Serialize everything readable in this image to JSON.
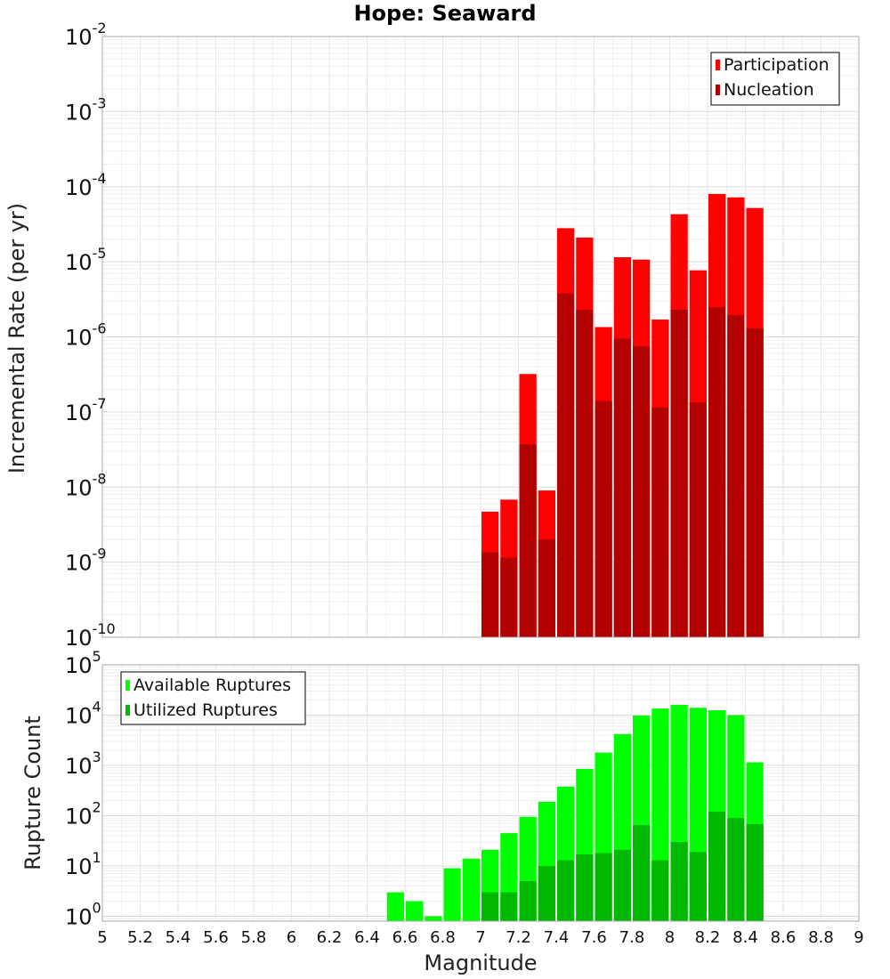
{
  "chart_data": [
    {
      "type": "bar",
      "title": "Hope: Seaward",
      "ylabel": "Incremental Rate (per yr)",
      "xlabel": "",
      "y_scale": "log",
      "ylim": [
        1e-10,
        0.01
      ],
      "xlim": [
        5,
        9
      ],
      "bar_width": 0.1,
      "legend": {
        "position": "top-right",
        "entries": [
          "Participation",
          "Nucleation"
        ]
      },
      "y_ticks": [
        {
          "base": "10",
          "exp": "-10",
          "value": 1e-10
        },
        {
          "base": "10",
          "exp": "-9",
          "value": 1e-09
        },
        {
          "base": "10",
          "exp": "-8",
          "value": 1e-08
        },
        {
          "base": "10",
          "exp": "-7",
          "value": 1e-07
        },
        {
          "base": "10",
          "exp": "-6",
          "value": 1e-06
        },
        {
          "base": "10",
          "exp": "-5",
          "value": 1e-05
        },
        {
          "base": "10",
          "exp": "-4",
          "value": 0.0001
        },
        {
          "base": "10",
          "exp": "-3",
          "value": 0.001
        },
        {
          "base": "10",
          "exp": "-2",
          "value": 0.01
        }
      ],
      "x": [
        7.05,
        7.15,
        7.25,
        7.35,
        7.45,
        7.55,
        7.65,
        7.75,
        7.85,
        7.95,
        8.05,
        8.15,
        8.25,
        8.35,
        8.45
      ],
      "series": [
        {
          "name": "Participation",
          "color": "#ff0000",
          "values": [
            4.7e-09,
            6.8e-09,
            3.2e-07,
            9e-09,
            2.8e-05,
            2.1e-05,
            1.35e-06,
            1.15e-05,
            1.07e-05,
            1.7e-06,
            4.3e-05,
            7.7e-06,
            8e-05,
            7.2e-05,
            5.2e-05
          ]
        },
        {
          "name": "Nucleation",
          "color": "#b20000",
          "values": [
            1.35e-09,
            1.15e-09,
            3.7e-08,
            2e-09,
            3.8e-06,
            2.3e-06,
            1.4e-07,
            9.5e-07,
            7.5e-07,
            1.15e-07,
            2.3e-06,
            1.35e-07,
            2.5e-06,
            1.95e-06,
            1.3e-06
          ]
        }
      ]
    },
    {
      "type": "bar",
      "title": "",
      "ylabel": "Rupture Count",
      "xlabel": "Magnitude",
      "y_scale": "log",
      "ylim": [
        0.8,
        100000.0
      ],
      "xlim": [
        5,
        9
      ],
      "bar_width": 0.1,
      "legend": {
        "position": "top-left",
        "entries": [
          "Available Ruptures",
          "Utilized Ruptures"
        ]
      },
      "y_ticks": [
        {
          "base": "10",
          "exp": "0",
          "value": 1
        },
        {
          "base": "10",
          "exp": "1",
          "value": 10
        },
        {
          "base": "10",
          "exp": "2",
          "value": 100
        },
        {
          "base": "10",
          "exp": "3",
          "value": 1000
        },
        {
          "base": "10",
          "exp": "4",
          "value": 10000
        },
        {
          "base": "10",
          "exp": "5",
          "value": 100000
        }
      ],
      "x_ticks": [
        "5",
        "5.2",
        "5.4",
        "5.6",
        "5.8",
        "6",
        "6.2",
        "6.4",
        "6.6",
        "6.8",
        "7",
        "7.2",
        "7.4",
        "7.6",
        "7.8",
        "8",
        "8.2",
        "8.4",
        "8.6",
        "8.8",
        "9"
      ],
      "x": [
        6.55,
        6.65,
        6.75,
        6.85,
        6.95,
        7.05,
        7.15,
        7.25,
        7.35,
        7.45,
        7.55,
        7.65,
        7.75,
        7.85,
        7.95,
        8.05,
        8.15,
        8.25,
        8.35,
        8.45
      ],
      "series": [
        {
          "name": "Available Ruptures",
          "color": "#00ff00",
          "values": [
            3,
            2,
            1,
            9,
            14,
            21,
            45,
            95,
            190,
            380,
            850,
            1800,
            4200,
            9800,
            13500,
            16000,
            14000,
            12500,
            10000,
            1150
          ]
        },
        {
          "name": "Utilized Ruptures",
          "color": "#00b800",
          "values": [
            null,
            null,
            null,
            null,
            null,
            3,
            3,
            5,
            10,
            13,
            17,
            18,
            21,
            65,
            13,
            30,
            19,
            120,
            90,
            68
          ]
        }
      ]
    }
  ]
}
